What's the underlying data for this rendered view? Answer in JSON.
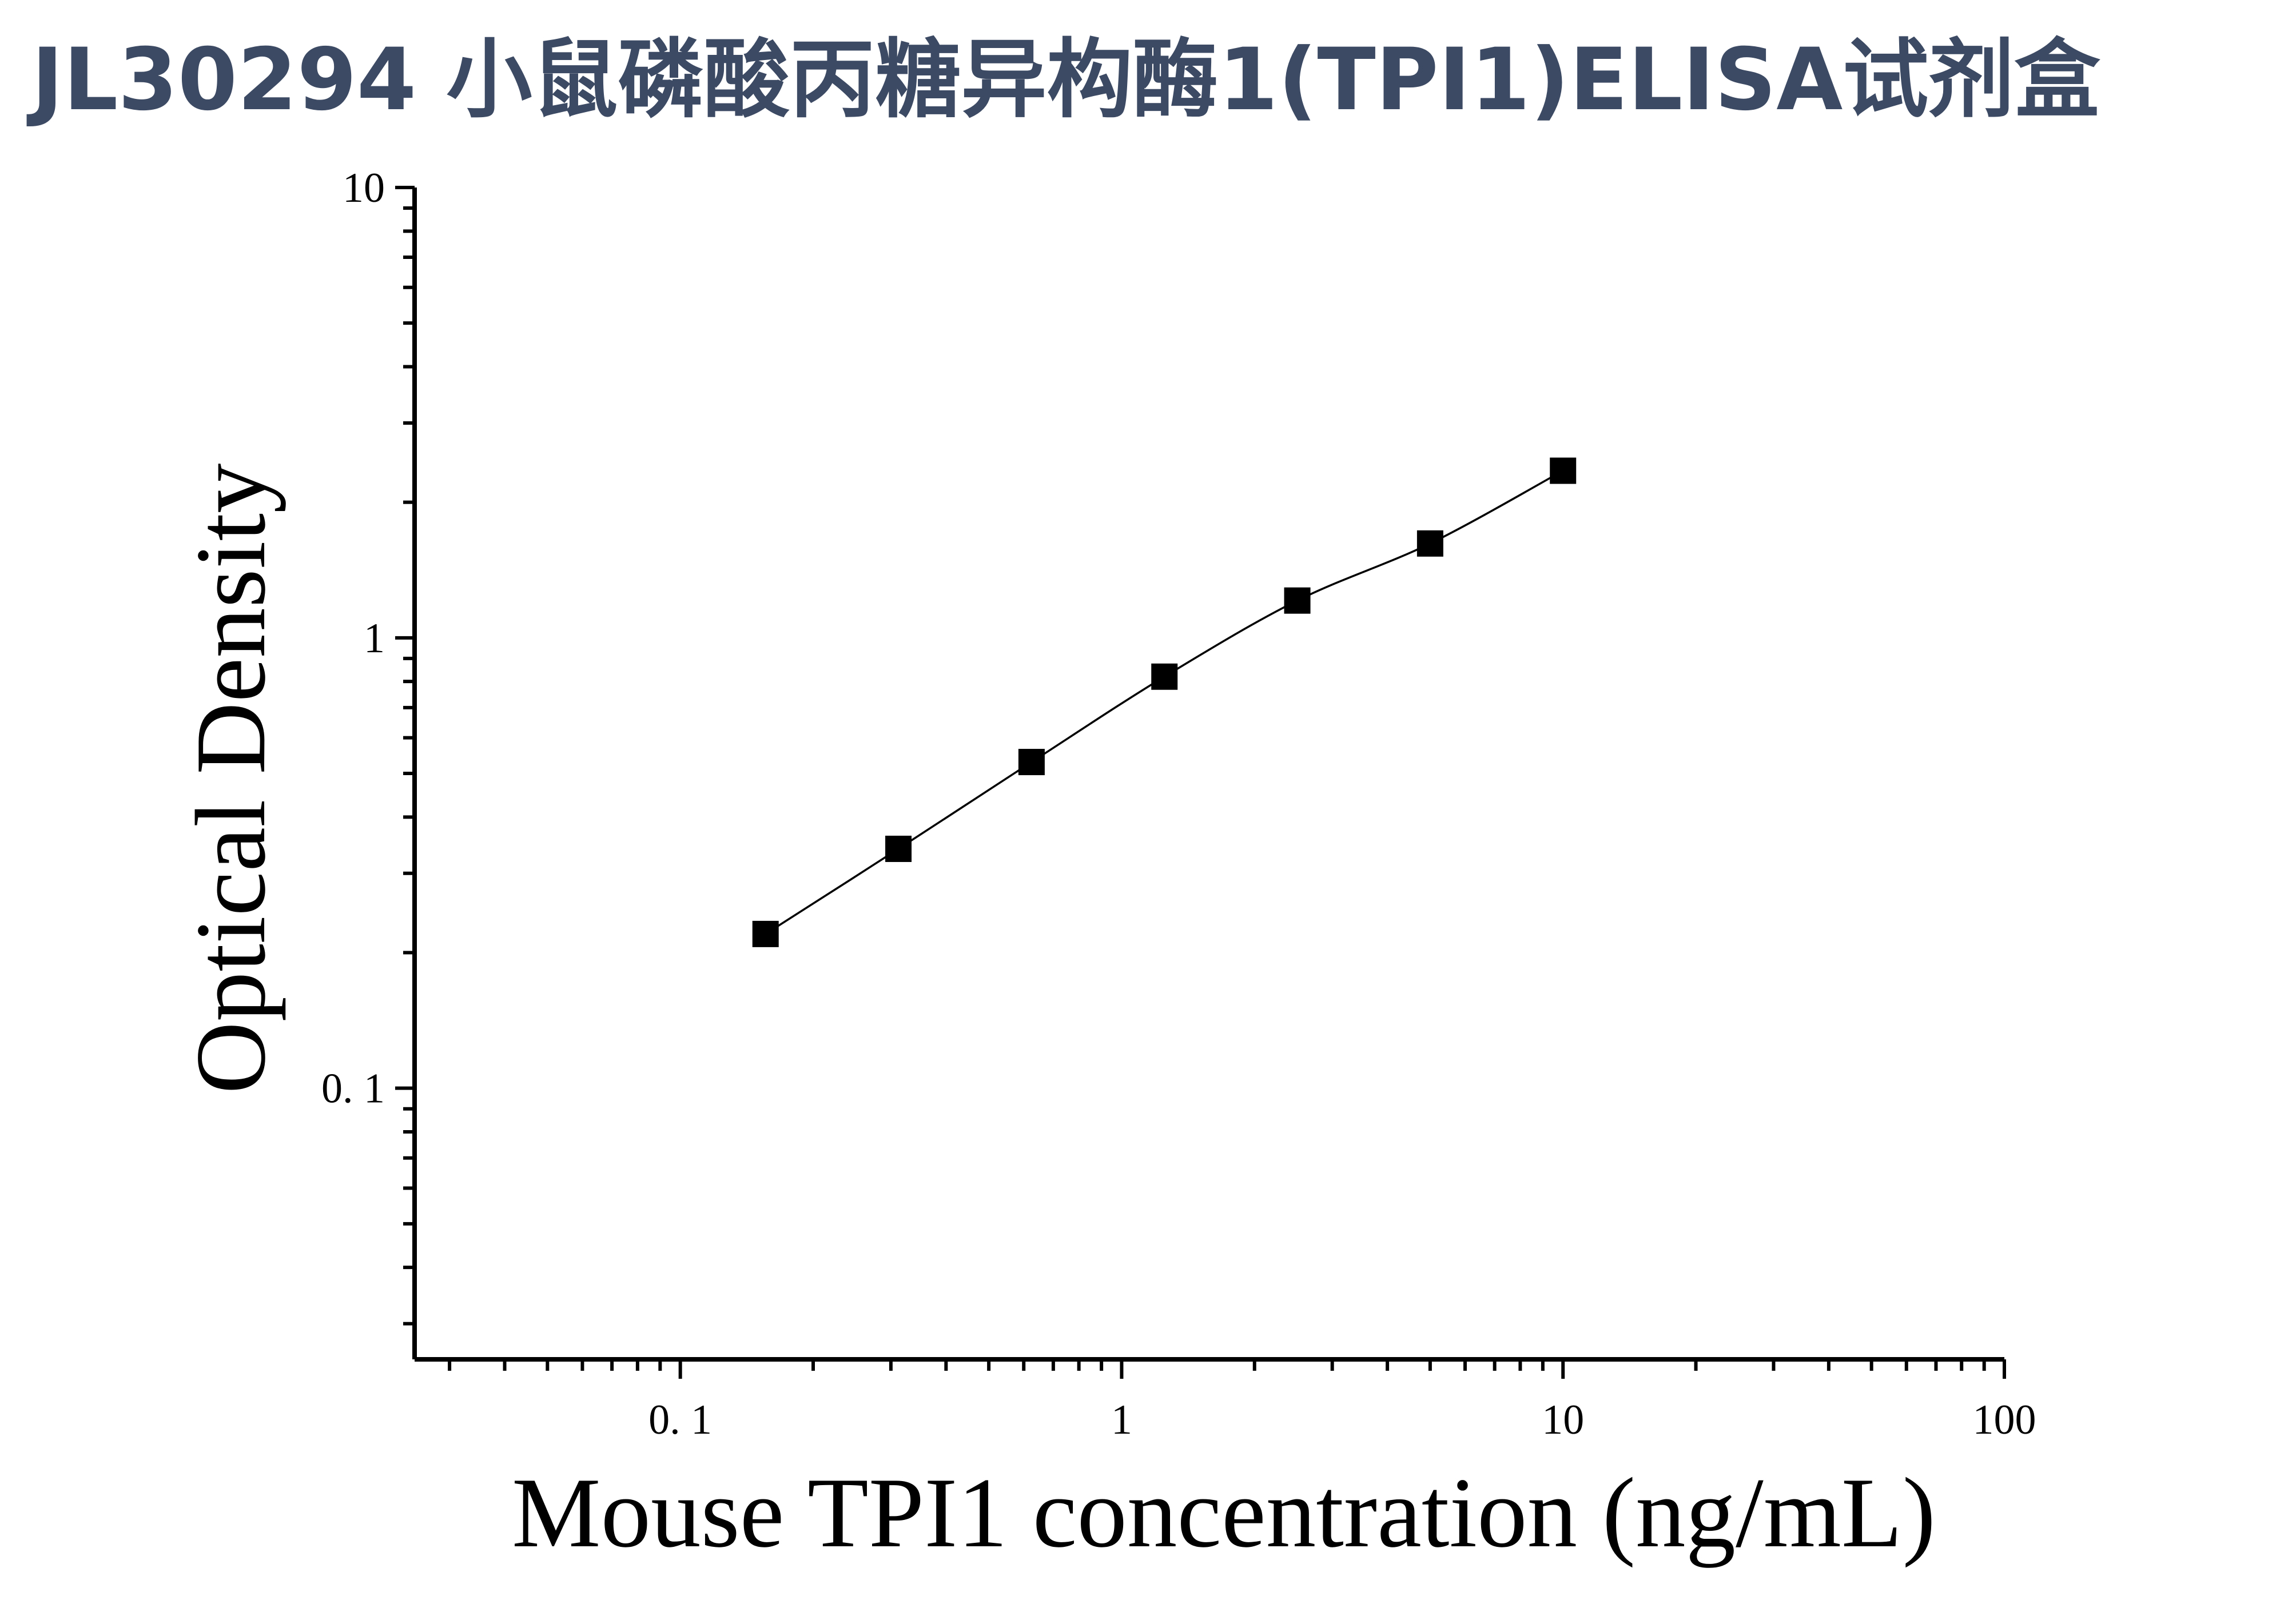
{
  "chart_data": {
    "type": "scatter",
    "title": "JL30294 小鼠磷酸丙糖异构酶1(TPI1)ELISA试剂盒",
    "xlabel": "Mouse TPI1 concentration (ng/mL)",
    "ylabel": "Optical Density",
    "xscale": "log",
    "yscale": "log",
    "xlim": [
      0.025,
      100
    ],
    "ylim": [
      0.025,
      10
    ],
    "x_ticks": [
      {
        "value": 0.1,
        "label": "0. 1"
      },
      {
        "value": 1,
        "label": "1"
      },
      {
        "value": 10,
        "label": "10"
      },
      {
        "value": 100,
        "label": "100"
      }
    ],
    "y_ticks": [
      {
        "value": 0.1,
        "label": "0. 1"
      },
      {
        "value": 1,
        "label": "1"
      },
      {
        "value": 10,
        "label": "10"
      }
    ],
    "grid": false,
    "legend": "none",
    "series": [
      {
        "marker": "square",
        "color": "#000000",
        "fit_line": true,
        "x": [
          0.156,
          0.312,
          0.625,
          1.25,
          2.5,
          5,
          10
        ],
        "y": [
          0.22,
          0.34,
          0.53,
          0.82,
          1.21,
          1.62,
          2.35
        ]
      }
    ]
  }
}
